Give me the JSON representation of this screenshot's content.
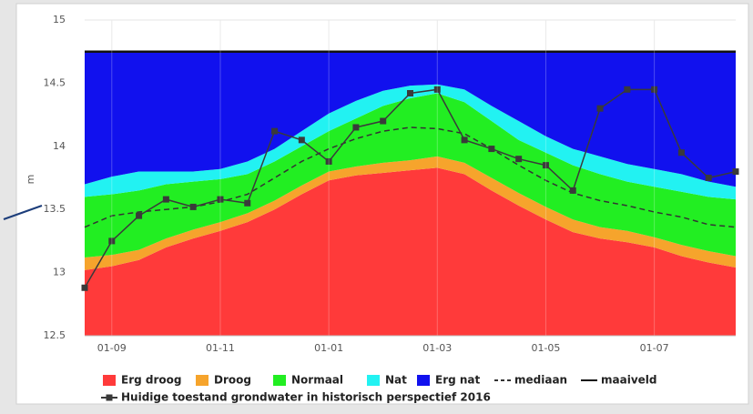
{
  "chart_data": {
    "type": "area",
    "y_label": "m",
    "categories": [
      null,
      "01-09",
      null,
      null,
      null,
      "01-11",
      null,
      null,
      null,
      "01-01",
      null,
      null,
      null,
      "01-03",
      null,
      null,
      null,
      "01-05",
      null,
      null,
      null,
      "01-07",
      null,
      null,
      null
    ],
    "ylim": [
      12.5,
      15
    ],
    "yticks": [
      12.5,
      13,
      13.5,
      14,
      14.5,
      15
    ],
    "grid": true,
    "series": [
      {
        "name": "Erg droog",
        "color": "#ff3a3a",
        "style": "band",
        "values": [
          13.02,
          13.05,
          13.1,
          13.2,
          13.27,
          13.33,
          13.4,
          13.5,
          13.62,
          13.73,
          13.77,
          13.79,
          13.81,
          13.83,
          13.78,
          13.65,
          13.53,
          13.42,
          13.32,
          13.27,
          13.24,
          13.2,
          13.13,
          13.08,
          13.04
        ]
      },
      {
        "name": "Droog",
        "color": "#f6a42c",
        "style": "band",
        "values": [
          13.12,
          13.14,
          13.18,
          13.27,
          13.34,
          13.4,
          13.47,
          13.57,
          13.69,
          13.8,
          13.84,
          13.87,
          13.89,
          13.92,
          13.87,
          13.75,
          13.63,
          13.52,
          13.42,
          13.36,
          13.33,
          13.28,
          13.22,
          13.17,
          13.13
        ]
      },
      {
        "name": "Normaal",
        "color": "#22ee22",
        "style": "band",
        "values": [
          13.6,
          13.62,
          13.65,
          13.7,
          13.72,
          13.74,
          13.78,
          13.88,
          14.0,
          14.12,
          14.22,
          14.32,
          14.38,
          14.42,
          14.35,
          14.2,
          14.05,
          13.95,
          13.85,
          13.78,
          13.72,
          13.68,
          13.64,
          13.6,
          13.58
        ]
      },
      {
        "name": "Nat",
        "color": "#22f2f2",
        "style": "band",
        "values": [
          13.7,
          13.76,
          13.8,
          13.8,
          13.8,
          13.82,
          13.88,
          13.98,
          14.12,
          14.26,
          14.36,
          14.44,
          14.48,
          14.49,
          14.45,
          14.32,
          14.2,
          14.08,
          13.98,
          13.92,
          13.86,
          13.82,
          13.78,
          13.72,
          13.68
        ]
      },
      {
        "name": "Erg nat",
        "color": "#1111ee",
        "style": "band",
        "values": [
          14.75,
          14.75,
          14.75,
          14.75,
          14.75,
          14.75,
          14.75,
          14.75,
          14.75,
          14.75,
          14.75,
          14.75,
          14.75,
          14.75,
          14.75,
          14.75,
          14.75,
          14.75,
          14.75,
          14.75,
          14.75,
          14.75,
          14.75,
          14.75,
          14.75
        ]
      },
      {
        "name": "mediaan",
        "color": "#333333",
        "style": "dashed",
        "values": [
          13.36,
          13.45,
          13.48,
          13.5,
          13.52,
          13.56,
          13.62,
          13.75,
          13.88,
          13.98,
          14.06,
          14.12,
          14.15,
          14.14,
          14.1,
          13.98,
          13.85,
          13.73,
          13.63,
          13.57,
          13.53,
          13.48,
          13.44,
          13.38,
          13.36
        ]
      },
      {
        "name": "maaiveld",
        "color": "#111111",
        "style": "line",
        "values": [
          14.75,
          14.75,
          14.75,
          14.75,
          14.75,
          14.75,
          14.75,
          14.75,
          14.75,
          14.75,
          14.75,
          14.75,
          14.75,
          14.75,
          14.75,
          14.75,
          14.75,
          14.75,
          14.75,
          14.75,
          14.75,
          14.75,
          14.75,
          14.75,
          14.75
        ]
      },
      {
        "name": "Huidige toestand grondwater in historisch perspectief 2016",
        "color": "#3a3a3a",
        "style": "markers",
        "values": [
          12.88,
          13.25,
          13.45,
          13.58,
          13.52,
          13.58,
          13.55,
          14.12,
          14.05,
          13.88,
          14.15,
          14.2,
          14.42,
          14.45,
          14.05,
          13.98,
          13.9,
          13.85,
          13.65,
          14.3,
          14.45,
          14.45,
          13.95,
          13.75,
          13.8
        ]
      }
    ]
  }
}
